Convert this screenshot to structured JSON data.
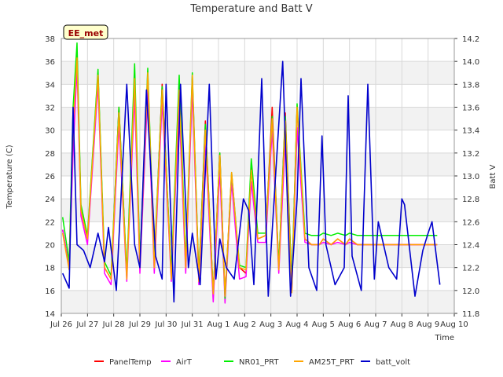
{
  "chart_data": {
    "type": "line",
    "title": "Temperature and Batt V",
    "xlabel": "Time",
    "ylabel": "Temperature (C)",
    "y2label": "Batt V",
    "station_label": "EE_met",
    "xlim": [
      0,
      15
    ],
    "ylim": [
      14,
      38
    ],
    "y2lim": [
      11.8,
      14.2
    ],
    "x_ticks": [
      {
        "v": 0,
        "label": "Jul 26"
      },
      {
        "v": 1,
        "label": "Jul 27"
      },
      {
        "v": 2,
        "label": "Jul 28"
      },
      {
        "v": 3,
        "label": "Jul 29"
      },
      {
        "v": 4,
        "label": "Jul 30"
      },
      {
        "v": 5,
        "label": "Jul 31"
      },
      {
        "v": 6,
        "label": "Aug 1"
      },
      {
        "v": 7,
        "label": "Aug 2"
      },
      {
        "v": 8,
        "label": "Aug 3"
      },
      {
        "v": 9,
        "label": "Aug 4"
      },
      {
        "v": 10,
        "label": "Aug 5"
      },
      {
        "v": 11,
        "label": "Aug 6"
      },
      {
        "v": 12,
        "label": "Aug 7"
      },
      {
        "v": 13,
        "label": "Aug 8"
      },
      {
        "v": 14,
        "label": "Aug 9"
      },
      {
        "v": 15,
        "label": "Aug 10"
      }
    ],
    "y_ticks": [
      14,
      16,
      18,
      20,
      22,
      24,
      26,
      28,
      30,
      32,
      34,
      36,
      38
    ],
    "y2_ticks": [
      11.8,
      12.0,
      12.2,
      12.4,
      12.6,
      12.8,
      13.0,
      13.2,
      13.4,
      13.6,
      13.8,
      14.0,
      14.2
    ],
    "legend_position": "bottom",
    "grid": true,
    "temp_x": [
      0.05,
      0.3,
      0.45,
      0.6,
      0.75,
      1.0,
      1.4,
      1.65,
      1.9,
      2.2,
      2.5,
      2.8,
      3.0,
      3.3,
      3.55,
      3.85,
      4.2,
      4.5,
      4.75,
      5.0,
      5.25,
      5.5,
      5.8,
      6.05,
      6.25,
      6.5,
      6.8,
      7.05,
      7.25,
      7.5,
      7.8,
      8.05,
      8.3,
      8.55,
      8.8,
      9.0,
      9.3,
      9.55,
      9.85,
      10.0,
      10.3,
      10.55,
      10.85,
      11.0,
      11.3,
      11.6,
      11.85,
      12.1,
      12.3,
      12.6,
      12.85,
      13.1,
      13.3,
      13.6,
      13.85,
      14.1,
      14.35
    ],
    "series": [
      {
        "name": "PanelTemp",
        "color": "#ff0000",
        "axis": "left",
        "values": [
          21.3,
          18,
          30,
          36.8,
          23,
          20.5,
          35,
          18,
          17,
          32,
          17.3,
          34.5,
          18,
          34.5,
          18,
          34,
          17.3,
          33.5,
          18,
          34.5,
          17,
          30.8,
          15.7,
          28,
          15.5,
          26,
          18,
          17.5,
          27,
          20.5,
          20.8,
          32,
          18,
          31.5,
          16.5,
          32,
          20.5,
          20,
          20,
          20.5,
          20,
          20.5,
          20,
          20.5,
          20,
          20,
          20,
          20,
          20,
          20,
          20,
          20,
          20,
          20,
          20,
          20,
          20
        ]
      },
      {
        "name": "AirT",
        "color": "#ff00ff",
        "axis": "left",
        "values": [
          21.3,
          18,
          28,
          35.5,
          22.5,
          20,
          34,
          17.5,
          16.5,
          30.5,
          16.8,
          33,
          17.5,
          33.5,
          17.5,
          32.5,
          16.8,
          32,
          17.5,
          33.5,
          16.5,
          29,
          15,
          26.5,
          14.9,
          25.5,
          17,
          17.2,
          25.5,
          20.2,
          20.2,
          30,
          17.5,
          29,
          16,
          30.2,
          20.2,
          20,
          20,
          20.2,
          20,
          20.2,
          20,
          20.2,
          20,
          20,
          20,
          20,
          20,
          20,
          20,
          20,
          20,
          20,
          20,
          20,
          20
        ]
      },
      {
        "name": "NR01_PRT",
        "color": "#00ee00",
        "axis": "left",
        "values": [
          22.4,
          18.5,
          32,
          37.6,
          23.5,
          20.8,
          35.3,
          18.5,
          17.3,
          32,
          17.5,
          35.8,
          18.5,
          35.4,
          18.5,
          33.8,
          17.5,
          34.8,
          18.5,
          35,
          17.2,
          30.5,
          15.8,
          28,
          15.3,
          26.3,
          18.2,
          18,
          27.5,
          21,
          21,
          31.2,
          18.2,
          31.2,
          16.5,
          32.3,
          21,
          20.8,
          20.8,
          21,
          20.8,
          21,
          20.8,
          21,
          20.8,
          20.8,
          20.8,
          20.8,
          20.8,
          20.8,
          20.8,
          20.8,
          20.8,
          20.8,
          20.8,
          20.8,
          20.8
        ]
      },
      {
        "name": "AM25T_PRT",
        "color": "#ffa500",
        "axis": "left",
        "values": [
          21,
          17.8,
          30.5,
          36.3,
          23,
          20.5,
          34.8,
          18,
          17,
          31.5,
          17,
          34.5,
          18,
          35,
          18,
          33.5,
          17,
          33.5,
          18,
          34.8,
          16.8,
          30,
          15.7,
          27.8,
          15.5,
          26.3,
          18,
          17.8,
          26.5,
          20.5,
          20.8,
          31,
          17.8,
          30.8,
          15.8,
          32,
          20.5,
          20,
          20,
          20.5,
          20,
          20.5,
          20,
          20.5,
          20,
          20,
          20,
          20,
          20,
          20,
          20,
          20,
          20,
          20,
          20,
          20,
          20
        ]
      },
      {
        "name": "batt_volt",
        "color": "#0000cc",
        "axis": "right",
        "x": [
          0.05,
          0.3,
          0.45,
          0.6,
          0.85,
          1.1,
          1.4,
          1.65,
          1.8,
          2.1,
          2.5,
          2.8,
          3.0,
          3.25,
          3.6,
          3.85,
          4.0,
          4.3,
          4.55,
          4.85,
          5.0,
          5.3,
          5.65,
          5.9,
          6.05,
          6.3,
          6.6,
          6.95,
          7.15,
          7.35,
          7.65,
          7.9,
          8.15,
          8.45,
          8.75,
          9.0,
          9.15,
          9.45,
          9.75,
          9.95,
          10.1,
          10.45,
          10.8,
          10.95,
          11.1,
          11.45,
          11.7,
          11.95,
          12.1,
          12.5,
          12.8,
          13.0,
          13.1,
          13.5,
          13.8,
          14.0,
          14.15,
          14.45
        ],
        "values": [
          12.15,
          12.02,
          13.6,
          12.4,
          12.35,
          12.2,
          12.5,
          12.25,
          12.55,
          12.0,
          13.8,
          12.4,
          12.2,
          13.75,
          12.3,
          12.1,
          13.8,
          11.9,
          13.8,
          12.2,
          12.5,
          12.05,
          13.8,
          12.1,
          12.45,
          12.2,
          12.1,
          12.8,
          12.7,
          12.05,
          13.85,
          11.95,
          12.9,
          14.0,
          11.95,
          12.8,
          13.85,
          12.2,
          12.0,
          13.35,
          12.4,
          12.05,
          12.2,
          13.7,
          12.3,
          12.0,
          13.8,
          12.1,
          12.6,
          12.2,
          12.1,
          12.8,
          12.75,
          11.95,
          12.35,
          12.5,
          12.6,
          12.05
        ]
      }
    ]
  }
}
